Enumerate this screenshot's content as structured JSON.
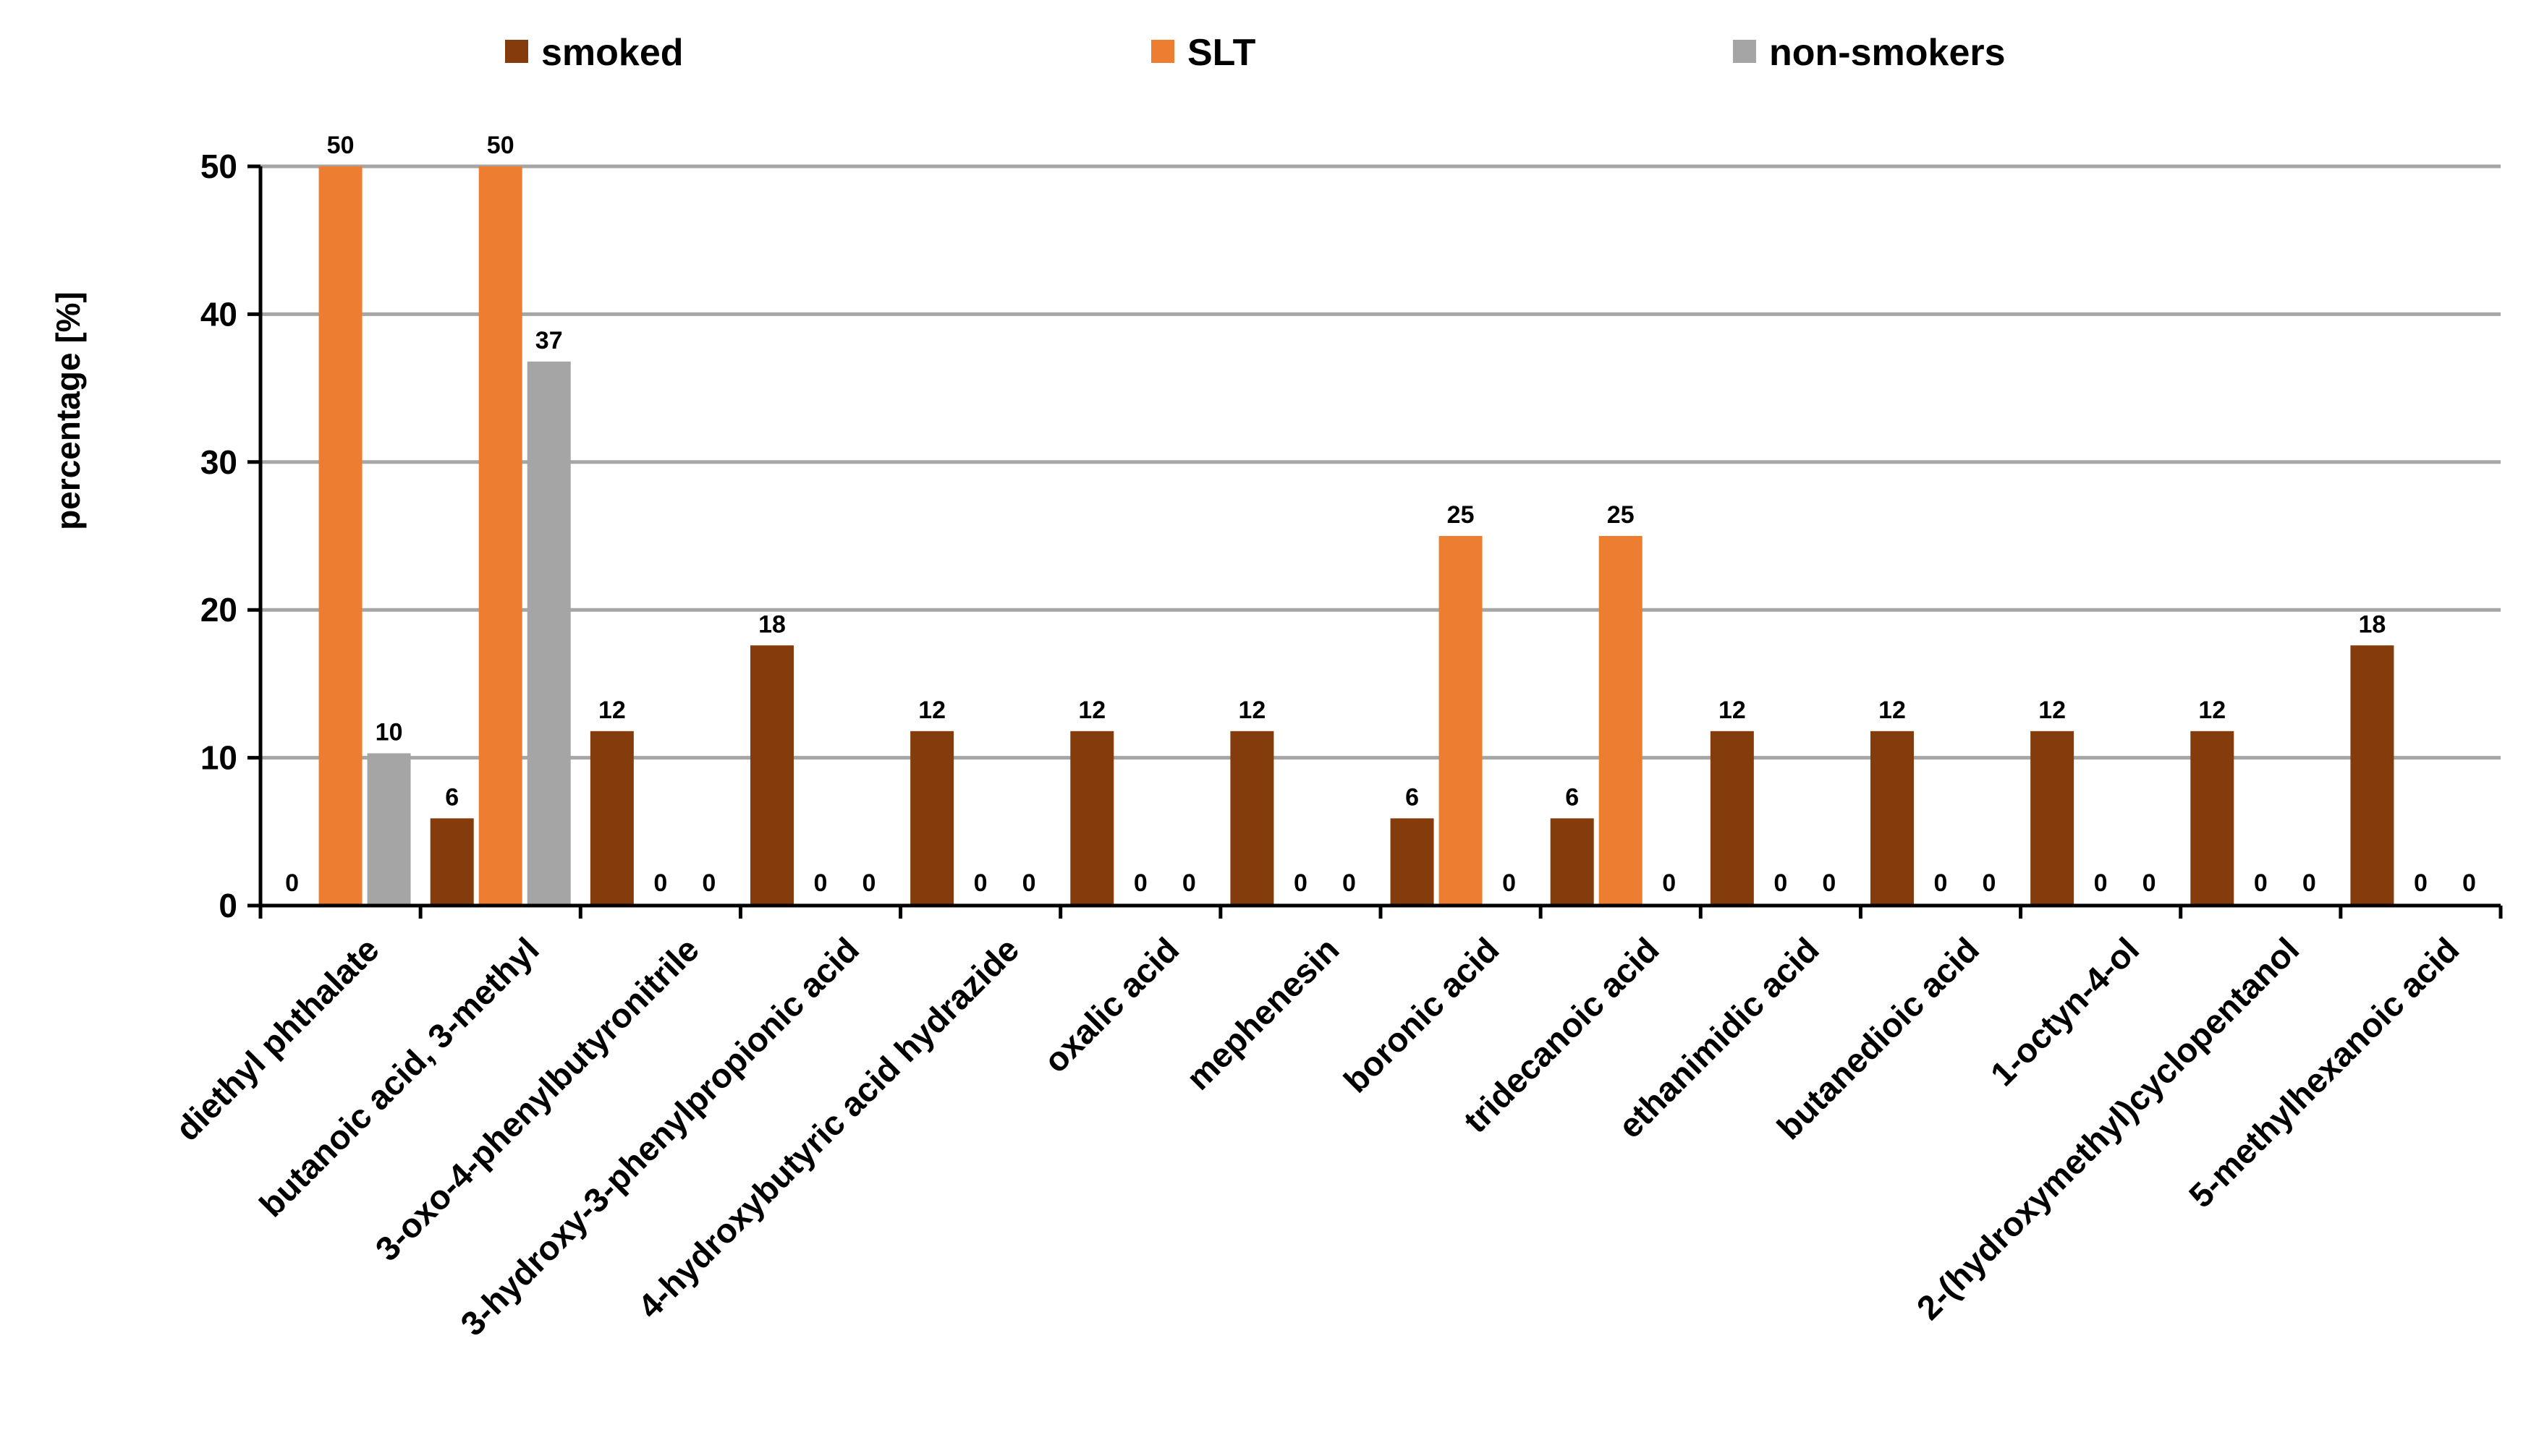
{
  "chart_data": {
    "type": "bar",
    "title": "",
    "xlabel": "",
    "ylabel": "percentage [%]",
    "ylim": [
      0,
      50
    ],
    "yticks": [
      0,
      10,
      20,
      30,
      40,
      50
    ],
    "grid": true,
    "legend_position": "top",
    "categories": [
      "diethyl phthalate",
      "butanoic acid, 3-methyl",
      "3-oxo-4-phenylbutyronitrile",
      "3-hydroxy-3-phenylpropionic acid",
      "4-hydroxybutyric acid hydrazide",
      "oxalic acid",
      "mephenesin",
      "boronic acid",
      "tridecanoic acid",
      "ethanimidic acid",
      "butanedioic acid",
      "1-octyn-4-ol",
      "2-(hydroxymethyl)cyclopentanol",
      "5-methylhexanoic acid"
    ],
    "series": [
      {
        "name": "smoked",
        "color": "#843C0C",
        "values": [
          0,
          5.9,
          11.8,
          17.6,
          11.8,
          11.8,
          11.8,
          5.9,
          5.9,
          11.8,
          11.8,
          11.8,
          11.8,
          17.6
        ],
        "labels": [
          "0",
          "6",
          "12",
          "18",
          "12",
          "12",
          "12",
          "6",
          "6",
          "12",
          "12",
          "12",
          "12",
          "18"
        ]
      },
      {
        "name": "SLT",
        "color": "#ED7D31",
        "values": [
          50,
          50,
          null,
          null,
          null,
          null,
          null,
          25,
          25,
          null,
          null,
          null,
          null,
          null
        ],
        "labels": [
          "50",
          "50",
          "0",
          "0",
          "0",
          "0",
          "0",
          "25",
          "25",
          "0",
          "0",
          "0",
          "0",
          "0"
        ]
      },
      {
        "name": "non-smokers",
        "color": "#A5A5A5",
        "values": [
          10.3,
          36.8,
          null,
          null,
          null,
          null,
          null,
          null,
          null,
          null,
          null,
          null,
          null,
          null
        ],
        "labels": [
          "10",
          "37",
          "0",
          "0",
          "0",
          "0",
          "0",
          "0",
          "0",
          "0",
          "0",
          "0",
          "0",
          "0"
        ]
      }
    ]
  }
}
